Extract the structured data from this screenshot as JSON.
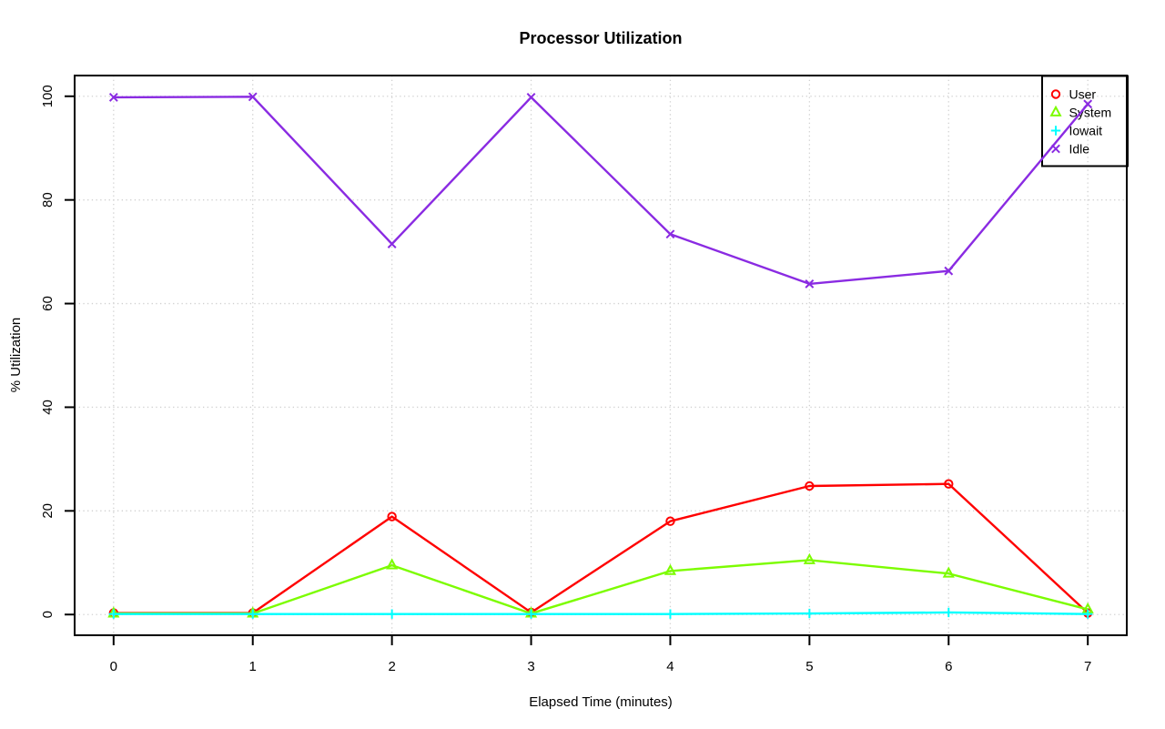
{
  "title": "Processor Utilization",
  "x_axis_label": "Elapsed Time (minutes)",
  "y_axis_label": "% Utilization",
  "colors": {
    "user": "#FF0000",
    "system": "#7CFC00",
    "iowait": "#00FFFF",
    "idle": "#8A2BE2",
    "grid": "#D0D0D0",
    "axis": "#000000",
    "background": "#FFFFFF"
  },
  "legend": {
    "position": "topright",
    "entries": [
      "User",
      "System",
      "Iowait",
      "Idle"
    ]
  },
  "chart_data": {
    "type": "line",
    "title": "Processor Utilization",
    "xlabel": "Elapsed Time (minutes)",
    "ylabel": "% Utilization",
    "x": [
      0,
      1,
      2,
      3,
      4,
      5,
      6,
      7
    ],
    "xticks": [
      "0",
      "1",
      "2",
      "3",
      "4",
      "5",
      "6",
      "7"
    ],
    "yticks": [
      "0",
      "20",
      "40",
      "60",
      "80",
      "100"
    ],
    "ytick_values": [
      0,
      20,
      40,
      60,
      80,
      100
    ],
    "xlim": [
      -0.28,
      7.28
    ],
    "ylim": [
      -4,
      104
    ],
    "grid": true,
    "grid_style": "dotted",
    "legend_position": "topright",
    "series": [
      {
        "name": "User",
        "marker": "circle",
        "color": "#FF0000",
        "values": [
          0.3,
          0.3,
          18.9,
          0.4,
          18.0,
          24.8,
          25.2,
          0.3
        ]
      },
      {
        "name": "System",
        "marker": "triangle",
        "color": "#7CFC00",
        "values": [
          0.2,
          0.2,
          9.5,
          0.2,
          8.4,
          10.5,
          7.9,
          1.0
        ]
      },
      {
        "name": "Iowait",
        "marker": "plus",
        "color": "#00FFFF",
        "values": [
          0.1,
          0.1,
          0.1,
          0.1,
          0.1,
          0.2,
          0.4,
          0.1
        ]
      },
      {
        "name": "Idle",
        "marker": "x",
        "color": "#8A2BE2",
        "values": [
          99.8,
          99.9,
          71.5,
          99.8,
          73.4,
          63.8,
          66.3,
          98.5
        ]
      }
    ]
  }
}
